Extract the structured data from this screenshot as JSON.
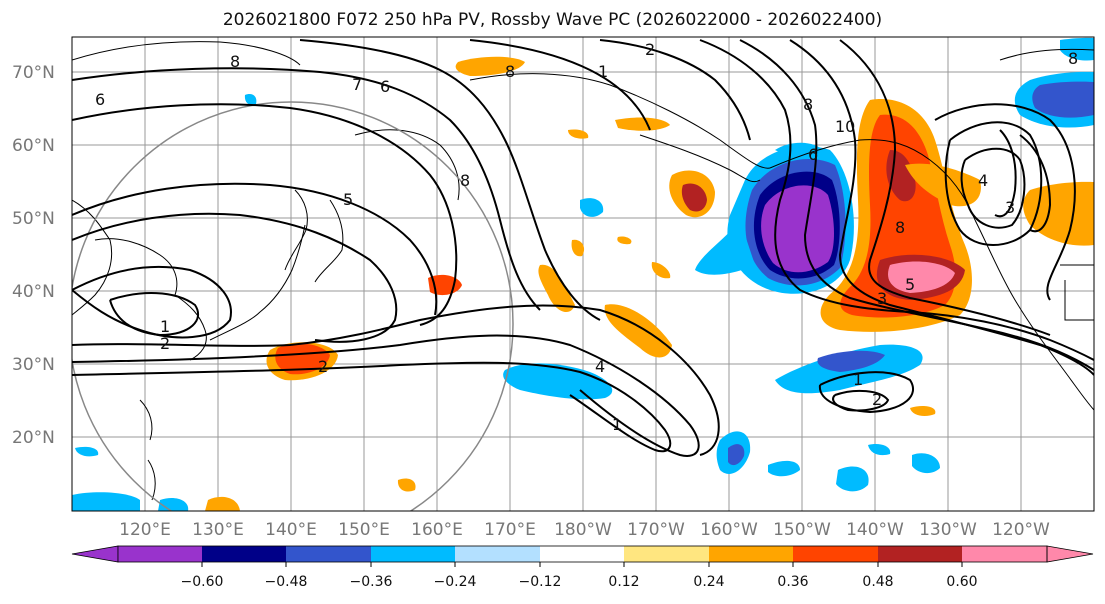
{
  "title": "2026021800 F072 250 hPa PV, Rossby Wave PC (2026022000 - 2026022400)",
  "map": {
    "lat_ticks": [
      "70°N",
      "60°N",
      "50°N",
      "40°N",
      "30°N",
      "20°N"
    ],
    "lon_ticks": [
      "120°E",
      "130°E",
      "140°E",
      "150°E",
      "160°E",
      "170°E",
      "180°W",
      "170°W",
      "160°W",
      "150°W",
      "140°W",
      "130°W",
      "120°W"
    ],
    "contour_labels": [
      "8",
      "6",
      "7",
      "6",
      "2",
      "1",
      "8",
      "8",
      "5",
      "1",
      "2",
      "1",
      "2",
      "4",
      "8",
      "6",
      "10",
      "8",
      "5",
      "3",
      "1",
      "2",
      "3",
      "4",
      "8"
    ],
    "colors": {
      "c1": "#9933cc",
      "c2": "#000088",
      "c3": "#3355cc",
      "c4": "#00bbff",
      "c5": "#b3e0ff",
      "c6": "#ffffff",
      "c7": "#ffe680",
      "c8": "#ffa500",
      "c9": "#ff4400",
      "c10": "#b22222",
      "c11": "#ff88aa"
    }
  },
  "colorbar": {
    "colors": [
      "#9933cc",
      "#000088",
      "#3355cc",
      "#00bbff",
      "#b3e0ff",
      "#ffffff",
      "#ffe680",
      "#ffa500",
      "#ff4400",
      "#b22222",
      "#ff88aa"
    ],
    "ticks": [
      "−0.60",
      "−0.48",
      "−0.36",
      "−0.24",
      "−0.12",
      "0.12",
      "0.24",
      "0.36",
      "0.48",
      "0.60"
    ]
  }
}
